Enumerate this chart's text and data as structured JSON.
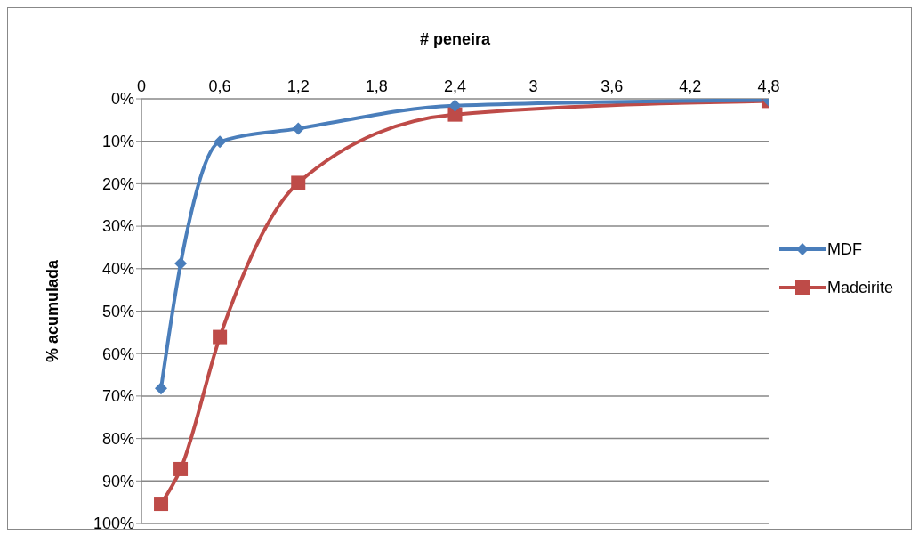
{
  "chart_data": {
    "type": "line",
    "xlabel": "# peneira",
    "ylabel": "% acumulada",
    "series": [
      {
        "name": "MDF",
        "color": "#4a7ebb",
        "marker": "diamond",
        "x": [
          0.15,
          0.3,
          0.6,
          1.2,
          2.4,
          4.8
        ],
        "values": [
          68.2,
          38.8,
          10.1,
          7.0,
          1.6,
          0.3
        ]
      },
      {
        "name": "Madeirite",
        "color": "#be4b48",
        "marker": "square",
        "x": [
          0.15,
          0.3,
          0.6,
          1.2,
          2.4,
          4.8
        ],
        "values": [
          95.4,
          87.2,
          56.1,
          19.8,
          3.7,
          0.5
        ]
      }
    ],
    "xlim": [
      0,
      4.8
    ],
    "xticks": [
      0,
      {
        "value": 0.6,
        "label": "0,6"
      },
      {
        "value": 1.2,
        "label": "1,2"
      },
      {
        "value": 1.8,
        "label": "1,8"
      },
      {
        "value": 2.4,
        "label": "2,4"
      },
      3,
      {
        "value": 3.6,
        "label": "3,6"
      },
      {
        "value": 4.2,
        "label": "4,2"
      },
      {
        "value": 4.8,
        "label": "4,8"
      }
    ],
    "ylim": [
      100,
      0
    ],
    "yticks": [
      {
        "value": 0,
        "label": "0%"
      },
      {
        "value": 10,
        "label": "10%"
      },
      {
        "value": 20,
        "label": "20%"
      },
      {
        "value": 30,
        "label": "30%"
      },
      {
        "value": 40,
        "label": "40%"
      },
      {
        "value": 50,
        "label": "50%"
      },
      {
        "value": 60,
        "label": "60%"
      },
      {
        "value": 70,
        "label": "70%"
      },
      {
        "value": 80,
        "label": "80%"
      },
      {
        "value": 90,
        "label": "90%"
      },
      {
        "value": 100,
        "label": "100%"
      }
    ],
    "grid": "y",
    "legend": "right",
    "line_style": "solid"
  }
}
